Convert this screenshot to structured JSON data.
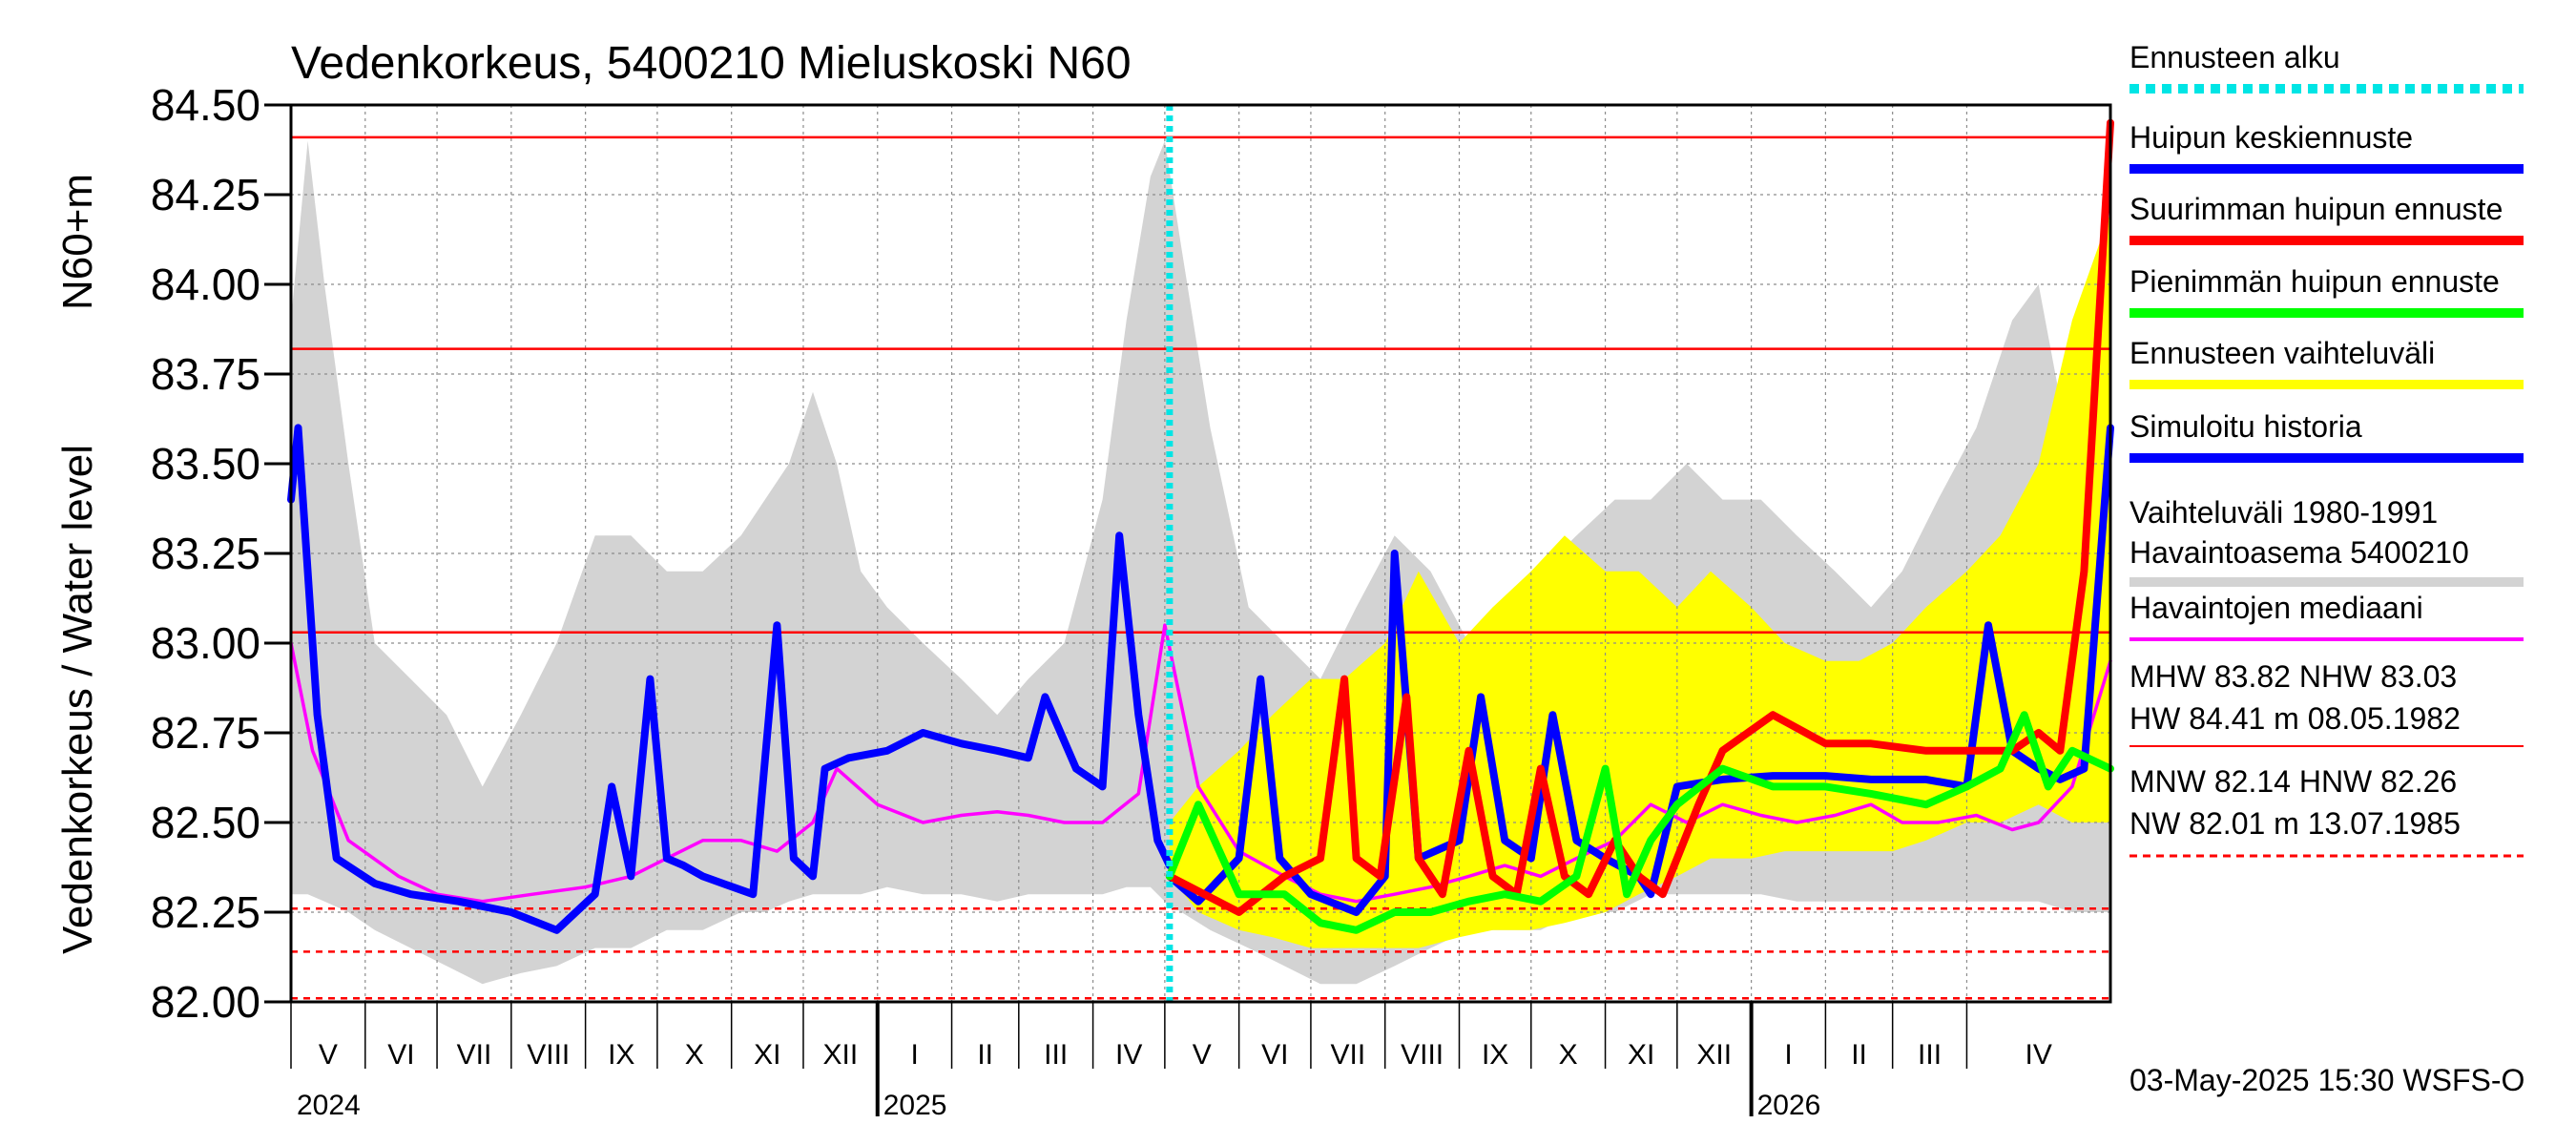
{
  "chart_data": {
    "type": "line",
    "title": "Vedenkorkeus, 5400210 Mieluskoski N60",
    "ylabel": "Vedenkorkeus / Water level",
    "ylabel_unit": "N60+m",
    "ylim": [
      82.0,
      84.5
    ],
    "yticks": [
      "82.00",
      "82.25",
      "82.50",
      "82.75",
      "83.00",
      "83.25",
      "83.50",
      "83.75",
      "84.00",
      "84.25",
      "84.50"
    ],
    "x_start": "2024-05-01",
    "x_end": "2026-05-31",
    "months": [
      {
        "label": "V",
        "start": "2024-05-01"
      },
      {
        "label": "VI",
        "start": "2024-06-01"
      },
      {
        "label": "VII",
        "start": "2024-07-01"
      },
      {
        "label": "VIII",
        "start": "2024-08-01"
      },
      {
        "label": "IX",
        "start": "2024-09-01"
      },
      {
        "label": "X",
        "start": "2024-10-01"
      },
      {
        "label": "XI",
        "start": "2024-11-01"
      },
      {
        "label": "XII",
        "start": "2024-12-01"
      },
      {
        "label": "I",
        "start": "2025-01-01"
      },
      {
        "label": "II",
        "start": "2025-02-01"
      },
      {
        "label": "III",
        "start": "2025-03-01"
      },
      {
        "label": "IV",
        "start": "2025-04-01"
      },
      {
        "label": "V",
        "start": "2025-05-01"
      },
      {
        "label": "VI",
        "start": "2025-06-01"
      },
      {
        "label": "VII",
        "start": "2025-07-01"
      },
      {
        "label": "VIII",
        "start": "2025-08-01"
      },
      {
        "label": "IX",
        "start": "2025-09-01"
      },
      {
        "label": "X",
        "start": "2025-10-01"
      },
      {
        "label": "XI",
        "start": "2025-11-01"
      },
      {
        "label": "XII",
        "start": "2025-12-01"
      },
      {
        "label": "I",
        "start": "2026-01-01"
      },
      {
        "label": "II",
        "start": "2026-02-01"
      },
      {
        "label": "III",
        "start": "2026-03-01"
      },
      {
        "label": "IV",
        "start": "2026-04-01"
      }
    ],
    "years": [
      {
        "label": "2024",
        "at": "2024-05-01"
      },
      {
        "label": "2025",
        "at": "2025-01-01"
      },
      {
        "label": "2026",
        "at": "2026-01-01"
      }
    ],
    "forecast_start": "2025-05-03",
    "reference_lines": [
      {
        "name": "HW",
        "value": 84.41,
        "style": "solid"
      },
      {
        "name": "MHW",
        "value": 83.82,
        "style": "solid"
      },
      {
        "name": "NHW",
        "value": 83.03,
        "style": "solid"
      },
      {
        "name": "HNW",
        "value": 82.26,
        "style": "dashed"
      },
      {
        "name": "MNW",
        "value": 82.14,
        "style": "dashed"
      },
      {
        "name": "NW",
        "value": 82.01,
        "style": "dashed"
      }
    ],
    "series": [
      {
        "name": "Vaihteluväli 1980-1991 Havaintoasema 5400210",
        "kind": "band",
        "color": "#d3d3d3",
        "x": [
          "2024-05-01",
          "2024-05-08",
          "2024-05-15",
          "2024-05-25",
          "2024-06-05",
          "2024-06-20",
          "2024-07-05",
          "2024-07-20",
          "2024-08-05",
          "2024-08-20",
          "2024-09-05",
          "2024-09-20",
          "2024-10-05",
          "2024-10-20",
          "2024-11-05",
          "2024-11-15",
          "2024-11-25",
          "2024-12-05",
          "2024-12-15",
          "2024-12-25",
          "2025-01-05",
          "2025-01-20",
          "2025-02-05",
          "2025-02-20",
          "2025-03-05",
          "2025-03-20",
          "2025-04-05",
          "2025-04-15",
          "2025-04-25",
          "2025-05-01",
          "2025-05-08",
          "2025-05-20",
          "2025-06-05",
          "2025-06-20",
          "2025-07-05",
          "2025-07-20",
          "2025-08-05",
          "2025-08-20",
          "2025-09-05",
          "2025-09-20",
          "2025-10-05",
          "2025-10-20",
          "2025-11-05",
          "2025-11-20",
          "2025-12-05",
          "2025-12-20",
          "2026-01-05",
          "2026-01-20",
          "2026-02-05",
          "2026-02-20",
          "2026-03-05",
          "2026-03-20",
          "2026-04-05",
          "2026-04-20",
          "2026-05-01",
          "2026-05-15",
          "2026-05-31"
        ],
        "low": [
          82.3,
          82.3,
          82.28,
          82.25,
          82.2,
          82.15,
          82.1,
          82.05,
          82.08,
          82.1,
          82.15,
          82.15,
          82.2,
          82.2,
          82.25,
          82.25,
          82.28,
          82.3,
          82.3,
          82.3,
          82.32,
          82.3,
          82.3,
          82.28,
          82.3,
          82.3,
          82.3,
          82.32,
          82.32,
          82.28,
          82.25,
          82.2,
          82.15,
          82.1,
          82.05,
          82.05,
          82.1,
          82.15,
          82.2,
          82.2,
          82.2,
          82.25,
          82.25,
          82.3,
          82.3,
          82.3,
          82.3,
          82.28,
          82.28,
          82.28,
          82.28,
          82.28,
          82.28,
          82.28,
          82.28,
          82.25,
          82.25
        ],
        "high": [
          83.9,
          84.4,
          84.0,
          83.5,
          83.0,
          82.9,
          82.8,
          82.6,
          82.8,
          83.0,
          83.3,
          83.3,
          83.2,
          83.2,
          83.3,
          83.4,
          83.5,
          83.7,
          83.5,
          83.2,
          83.1,
          83.0,
          82.9,
          82.8,
          82.9,
          83.0,
          83.4,
          83.9,
          84.3,
          84.4,
          84.1,
          83.6,
          83.1,
          83.0,
          82.9,
          83.1,
          83.3,
          83.2,
          83.0,
          83.1,
          83.2,
          83.3,
          83.4,
          83.4,
          83.5,
          83.4,
          83.4,
          83.3,
          83.2,
          83.1,
          83.2,
          83.4,
          83.6,
          83.9,
          84.0,
          83.5,
          83.2
        ]
      },
      {
        "name": "Ennusteen vaihteluväli",
        "kind": "band",
        "color": "#ffff00",
        "x": [
          "2025-05-03",
          "2025-05-15",
          "2025-06-01",
          "2025-06-15",
          "2025-07-01",
          "2025-07-15",
          "2025-08-01",
          "2025-08-15",
          "2025-09-01",
          "2025-09-15",
          "2025-10-01",
          "2025-10-15",
          "2025-11-01",
          "2025-11-15",
          "2025-12-01",
          "2025-12-15",
          "2026-01-01",
          "2026-01-15",
          "2026-02-01",
          "2026-02-15",
          "2026-03-01",
          "2026-03-15",
          "2026-04-01",
          "2026-04-15",
          "2026-05-01",
          "2026-05-15",
          "2026-05-31"
        ],
        "low": [
          82.35,
          82.25,
          82.2,
          82.18,
          82.15,
          82.15,
          82.15,
          82.15,
          82.18,
          82.2,
          82.2,
          82.22,
          82.25,
          82.3,
          82.35,
          82.4,
          82.4,
          82.42,
          82.42,
          82.42,
          82.42,
          82.45,
          82.5,
          82.5,
          82.55,
          82.5,
          82.5
        ],
        "high": [
          82.5,
          82.6,
          82.7,
          82.8,
          82.9,
          82.9,
          83.0,
          83.2,
          83.0,
          83.1,
          83.2,
          83.3,
          83.2,
          83.2,
          83.1,
          83.2,
          83.1,
          83.0,
          82.95,
          82.95,
          83.0,
          83.1,
          83.2,
          83.3,
          83.5,
          83.9,
          84.2
        ]
      },
      {
        "name": "Havaintojen mediaani",
        "kind": "line",
        "color": "#ff00ff",
        "x": [
          "2024-05-01",
          "2024-05-10",
          "2024-05-25",
          "2024-06-15",
          "2024-07-01",
          "2024-07-20",
          "2024-08-10",
          "2024-09-01",
          "2024-09-20",
          "2024-10-05",
          "2024-10-20",
          "2024-11-05",
          "2024-11-20",
          "2024-12-05",
          "2024-12-15",
          "2025-01-01",
          "2025-01-20",
          "2025-02-05",
          "2025-02-20",
          "2025-03-05",
          "2025-03-20",
          "2025-04-05",
          "2025-04-20",
          "2025-05-01",
          "2025-05-15",
          "2025-06-01",
          "2025-06-20",
          "2025-07-05",
          "2025-07-20",
          "2025-08-05",
          "2025-08-20",
          "2025-09-05",
          "2025-09-20",
          "2025-10-05",
          "2025-10-20",
          "2025-11-05",
          "2025-11-20",
          "2025-12-05",
          "2025-12-20",
          "2026-01-05",
          "2026-01-20",
          "2026-02-05",
          "2026-02-20",
          "2026-03-05",
          "2026-03-20",
          "2026-04-05",
          "2026-04-20",
          "2026-05-01",
          "2026-05-15",
          "2026-05-31"
        ],
        "values": [
          83.0,
          82.7,
          82.45,
          82.35,
          82.3,
          82.28,
          82.3,
          82.32,
          82.35,
          82.4,
          82.45,
          82.45,
          82.42,
          82.5,
          82.65,
          82.55,
          82.5,
          82.52,
          82.53,
          82.52,
          82.5,
          82.5,
          82.58,
          83.05,
          82.6,
          82.42,
          82.35,
          82.3,
          82.28,
          82.3,
          82.32,
          82.35,
          82.38,
          82.35,
          82.4,
          82.45,
          82.55,
          82.5,
          82.55,
          82.52,
          82.5,
          82.52,
          82.55,
          82.5,
          82.5,
          82.52,
          82.48,
          82.5,
          82.6,
          82.95
        ]
      },
      {
        "name": "Simuloitu historia",
        "kind": "line",
        "color": "#0000ff",
        "x": [
          "2024-05-01",
          "2024-05-04",
          "2024-05-12",
          "2024-05-20",
          "2024-06-05",
          "2024-06-20",
          "2024-07-10",
          "2024-08-01",
          "2024-08-20",
          "2024-09-05",
          "2024-09-12",
          "2024-09-20",
          "2024-09-28",
          "2024-10-05",
          "2024-10-12",
          "2024-10-20",
          "2024-11-10",
          "2024-11-20",
          "2024-11-27",
          "2024-12-05",
          "2024-12-10",
          "2024-12-20",
          "2025-01-05",
          "2025-01-20",
          "2025-02-05",
          "2025-02-20",
          "2025-03-05",
          "2025-03-12",
          "2025-03-25",
          "2025-04-05",
          "2025-04-12",
          "2025-04-20",
          "2025-04-28",
          "2025-05-03"
        ],
        "values": [
          83.4,
          83.6,
          82.8,
          82.4,
          82.33,
          82.3,
          82.28,
          82.25,
          82.2,
          82.3,
          82.6,
          82.35,
          82.9,
          82.4,
          82.38,
          82.35,
          82.3,
          83.05,
          82.4,
          82.35,
          82.65,
          82.68,
          82.7,
          82.75,
          82.72,
          82.7,
          82.68,
          82.85,
          82.65,
          82.6,
          83.3,
          82.8,
          82.45,
          82.38
        ]
      },
      {
        "name": "Huipun keskiennuste",
        "kind": "line",
        "color": "#0000ff",
        "x": [
          "2025-05-03",
          "2025-05-15",
          "2025-06-01",
          "2025-06-10",
          "2025-06-18",
          "2025-07-01",
          "2025-07-20",
          "2025-08-01",
          "2025-08-05",
          "2025-08-15",
          "2025-09-01",
          "2025-09-10",
          "2025-09-20",
          "2025-10-01",
          "2025-10-10",
          "2025-10-20",
          "2025-11-01",
          "2025-11-15",
          "2025-11-20",
          "2025-12-01",
          "2025-12-20",
          "2026-01-10",
          "2026-02-01",
          "2026-02-20",
          "2026-03-15",
          "2026-04-01",
          "2026-04-10",
          "2026-04-20",
          "2026-05-01",
          "2026-05-10",
          "2026-05-20",
          "2026-05-31"
        ],
        "values": [
          82.35,
          82.28,
          82.4,
          82.9,
          82.4,
          82.3,
          82.25,
          82.35,
          83.25,
          82.4,
          82.45,
          82.85,
          82.45,
          82.4,
          82.8,
          82.45,
          82.4,
          82.35,
          82.3,
          82.6,
          82.62,
          82.63,
          82.63,
          82.62,
          82.62,
          82.6,
          83.05,
          82.7,
          82.65,
          82.62,
          82.65,
          83.6
        ]
      },
      {
        "name": "Suurimman huipun ennuste",
        "kind": "line",
        "color": "#ff0000",
        "x": [
          "2025-05-03",
          "2025-06-01",
          "2025-06-20",
          "2025-07-05",
          "2025-07-15",
          "2025-07-20",
          "2025-07-30",
          "2025-08-10",
          "2025-08-15",
          "2025-08-25",
          "2025-09-05",
          "2025-09-15",
          "2025-09-25",
          "2025-10-05",
          "2025-10-15",
          "2025-10-25",
          "2025-11-05",
          "2025-11-15",
          "2025-11-25",
          "2025-12-10",
          "2025-12-20",
          "2026-01-10",
          "2026-02-01",
          "2026-02-20",
          "2026-03-15",
          "2026-04-01",
          "2026-04-20",
          "2026-05-01",
          "2026-05-10",
          "2026-05-20",
          "2026-05-31"
        ],
        "values": [
          82.35,
          82.25,
          82.35,
          82.4,
          82.9,
          82.4,
          82.35,
          82.85,
          82.4,
          82.3,
          82.7,
          82.35,
          82.3,
          82.65,
          82.35,
          82.3,
          82.45,
          82.35,
          82.3,
          82.55,
          82.7,
          82.8,
          82.72,
          82.72,
          82.7,
          82.7,
          82.7,
          82.75,
          82.7,
          83.2,
          84.45
        ]
      },
      {
        "name": "Pienimmän huipun ennuste",
        "kind": "line",
        "color": "#00ff00",
        "x": [
          "2025-05-03",
          "2025-05-15",
          "2025-06-01",
          "2025-06-20",
          "2025-07-05",
          "2025-07-20",
          "2025-08-05",
          "2025-08-20",
          "2025-09-05",
          "2025-09-20",
          "2025-10-05",
          "2025-10-20",
          "2025-11-01",
          "2025-11-10",
          "2025-11-20",
          "2025-12-01",
          "2025-12-20",
          "2026-01-10",
          "2026-02-01",
          "2026-02-20",
          "2026-03-15",
          "2026-04-01",
          "2026-04-15",
          "2026-04-25",
          "2026-05-05",
          "2026-05-15",
          "2026-05-31"
        ],
        "values": [
          82.35,
          82.55,
          82.3,
          82.3,
          82.22,
          82.2,
          82.25,
          82.25,
          82.28,
          82.3,
          82.28,
          82.35,
          82.65,
          82.3,
          82.45,
          82.55,
          82.65,
          82.6,
          82.6,
          82.58,
          82.55,
          82.6,
          82.65,
          82.8,
          82.6,
          82.7,
          82.65
        ]
      }
    ],
    "legend": [
      {
        "label": "Ennusteen alku",
        "color": "#00e5e5",
        "style": "dotted"
      },
      {
        "label": "Huipun keskiennuste",
        "color": "#0000ff",
        "style": "solid"
      },
      {
        "label": "Suurimman huipun ennuste",
        "color": "#ff0000",
        "style": "solid"
      },
      {
        "label": "Pienimmän huipun ennuste",
        "color": "#00ff00",
        "style": "solid"
      },
      {
        "label": "Ennusteen vaihteluväli",
        "color": "#ffff00",
        "style": "solid"
      },
      {
        "label": "Simuloitu historia",
        "color": "#0000ff",
        "style": "solid"
      },
      {
        "label": "Vaihteluväli 1980-1991",
        "label2": " Havaintoasema 5400210",
        "color": "#d3d3d3",
        "style": "solid"
      },
      {
        "label": "Havaintojen mediaani",
        "color": "#ff00ff",
        "style": "solid"
      }
    ],
    "stats": {
      "line1": "MHW  83.82 NHW  83.03",
      "line2": "HW  84.41 m 08.05.1982",
      "line3": "MNW  82.14 HNW  82.26",
      "line4": "NW  82.01 m 13.07.1985"
    },
    "footer": "03-May-2025 15:30 WSFS-O"
  }
}
